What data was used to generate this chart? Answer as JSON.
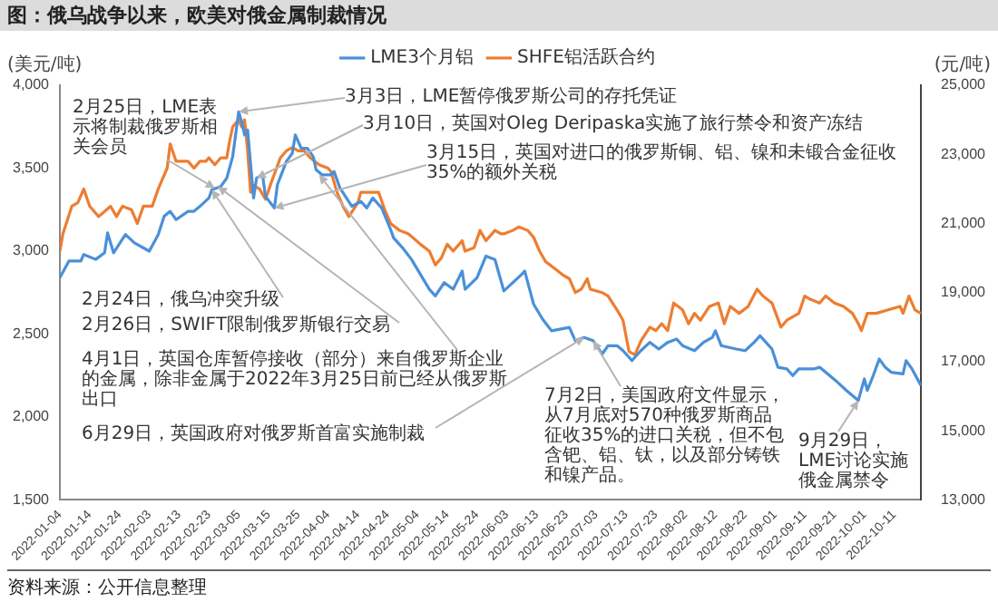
{
  "chart_data": {
    "type": "line",
    "title": "图：俄乌战争以来，欧美对俄金属制裁情况",
    "ylabel": "(美元/吨)",
    "y2label": "(元/吨)",
    "xlim": [
      "2022-01-04",
      "2022-10-20"
    ],
    "xticks": [
      "2022-01-04",
      "2022-01-14",
      "2022-01-24",
      "2022-02-03",
      "2022-02-13",
      "2022-02-23",
      "2022-03-05",
      "2022-03-15",
      "2022-03-25",
      "2022-04-04",
      "2022-04-14",
      "2022-04-24",
      "2022-05-04",
      "2022-05-14",
      "2022-05-24",
      "2022-06-03",
      "2022-06-13",
      "2022-06-23",
      "2022-07-03",
      "2022-07-13",
      "2022-07-23",
      "2022-08-02",
      "2022-08-12",
      "2022-08-22",
      "2022-09-01",
      "2022-09-11",
      "2022-09-21",
      "2022-10-01",
      "2022-10-11"
    ],
    "ylim": [
      1500,
      4000
    ],
    "yticks": [
      {
        "value": 1500,
        "label": "1,500"
      },
      {
        "value": 2000,
        "label": "2,000"
      },
      {
        "value": 2500,
        "label": "2,500"
      },
      {
        "value": 3000,
        "label": "3,000"
      },
      {
        "value": 3500,
        "label": "3,500"
      },
      {
        "value": 4000,
        "label": "4,000"
      }
    ],
    "y2lim": [
      13000,
      25000
    ],
    "y2ticks": [
      {
        "value": 13000,
        "label": "13,000"
      },
      {
        "value": 15000,
        "label": "15,000"
      },
      {
        "value": 17000,
        "label": "17,000"
      },
      {
        "value": 19000,
        "label": "19,000"
      },
      {
        "value": 21000,
        "label": "21,000"
      },
      {
        "value": 23000,
        "label": "23,000"
      },
      {
        "value": 25000,
        "label": "25,000"
      }
    ],
    "legend": "top",
    "grid": false,
    "marker": "none",
    "line_style": "solid",
    "series": [
      {
        "name": "LME3个月铝",
        "color": "#4a90d9",
        "x": [
          "2022-01-04",
          "2022-01-07",
          "2022-01-11",
          "2022-01-12",
          "2022-01-16",
          "2022-01-19",
          "2022-01-20",
          "2022-01-22",
          "2022-01-26",
          "2022-01-29",
          "2022-02-03",
          "2022-02-06",
          "2022-02-08",
          "2022-02-10",
          "2022-02-12",
          "2022-02-16",
          "2022-02-18",
          "2022-02-20",
          "2022-02-23",
          "2022-02-24",
          "2022-02-27",
          "2022-03-01",
          "2022-03-03",
          "2022-03-05",
          "2022-03-06",
          "2022-03-07",
          "2022-03-08",
          "2022-03-10",
          "2022-03-11",
          "2022-03-13",
          "2022-03-14",
          "2022-03-17",
          "2022-03-18",
          "2022-03-21",
          "2022-03-23",
          "2022-03-24",
          "2022-03-26",
          "2022-03-28",
          "2022-03-30",
          "2022-03-31",
          "2022-04-02",
          "2022-04-05",
          "2022-04-06",
          "2022-04-08",
          "2022-04-12",
          "2022-04-15",
          "2022-04-17",
          "2022-04-19",
          "2022-04-22",
          "2022-04-25",
          "2022-04-26",
          "2022-04-29",
          "2022-05-02",
          "2022-05-05",
          "2022-05-08",
          "2022-05-10",
          "2022-05-13",
          "2022-05-16",
          "2022-05-19",
          "2022-05-20",
          "2022-05-24",
          "2022-05-27",
          "2022-05-30",
          "2022-06-02",
          "2022-06-08",
          "2022-06-09",
          "2022-06-12",
          "2022-06-15",
          "2022-06-18",
          "2022-06-24",
          "2022-06-26",
          "2022-06-29",
          "2022-07-02",
          "2022-07-05",
          "2022-07-07",
          "2022-07-10",
          "2022-07-12",
          "2022-07-15",
          "2022-07-18",
          "2022-07-21",
          "2022-07-24",
          "2022-07-27",
          "2022-07-30",
          "2022-08-01",
          "2022-08-05",
          "2022-08-08",
          "2022-08-11",
          "2022-08-12",
          "2022-08-14",
          "2022-08-19",
          "2022-08-22",
          "2022-08-25",
          "2022-08-27",
          "2022-08-31",
          "2022-09-02",
          "2022-09-05",
          "2022-09-07",
          "2022-09-09",
          "2022-09-14",
          "2022-09-16",
          "2022-09-18",
          "2022-09-22",
          "2022-09-25",
          "2022-09-29",
          "2022-10-01",
          "2022-10-02",
          "2022-10-04",
          "2022-10-06",
          "2022-10-08",
          "2022-10-10",
          "2022-10-14",
          "2022-10-15",
          "2022-10-17",
          "2022-10-20"
        ],
        "values": [
          2840,
          2940,
          2940,
          2980,
          2950,
          2990,
          3110,
          2990,
          3100,
          3050,
          3000,
          3100,
          3210,
          3240,
          3190,
          3240,
          3240,
          3270,
          3320,
          3370,
          3390,
          3440,
          3570,
          3840,
          3780,
          3700,
          3730,
          3320,
          3440,
          3460,
          3330,
          3260,
          3400,
          3540,
          3590,
          3700,
          3620,
          3620,
          3570,
          3490,
          3460,
          3460,
          3480,
          3380,
          3270,
          3300,
          3260,
          3320,
          3260,
          3130,
          3080,
          3020,
          2950,
          2860,
          2770,
          2730,
          2810,
          2770,
          2880,
          2770,
          2840,
          2970,
          2950,
          2760,
          2860,
          2880,
          2680,
          2590,
          2520,
          2540,
          2460,
          2480,
          2460,
          2380,
          2430,
          2430,
          2400,
          2340,
          2400,
          2450,
          2410,
          2450,
          2470,
          2430,
          2400,
          2450,
          2480,
          2520,
          2430,
          2410,
          2400,
          2450,
          2490,
          2410,
          2300,
          2290,
          2250,
          2290,
          2290,
          2300,
          2270,
          2210,
          2160,
          2100,
          2230,
          2160,
          2250,
          2350,
          2300,
          2270,
          2260,
          2340,
          2290,
          2190
        ]
      },
      {
        "name": "SHFE铝活跃合约",
        "color": "#ed7d31",
        "axis": "y2",
        "x": [
          "2022-01-04",
          "2022-01-05",
          "2022-01-08",
          "2022-01-10",
          "2022-01-12",
          "2022-01-14",
          "2022-01-17",
          "2022-01-21",
          "2022-01-23",
          "2022-01-25",
          "2022-01-28",
          "2022-01-30",
          "2022-02-01",
          "2022-02-04",
          "2022-02-06",
          "2022-02-08",
          "2022-02-09",
          "2022-02-10",
          "2022-02-12",
          "2022-02-16",
          "2022-02-18",
          "2022-02-20",
          "2022-02-22",
          "2022-02-23",
          "2022-02-25",
          "2022-02-27",
          "2022-03-01",
          "2022-03-02",
          "2022-03-03",
          "2022-03-05",
          "2022-03-06",
          "2022-03-07",
          "2022-03-08",
          "2022-03-09",
          "2022-03-10",
          "2022-03-12",
          "2022-03-14",
          "2022-03-16",
          "2022-03-19",
          "2022-03-21",
          "2022-03-23",
          "2022-03-25",
          "2022-03-27",
          "2022-03-29",
          "2022-04-01",
          "2022-04-04",
          "2022-04-05",
          "2022-04-07",
          "2022-04-09",
          "2022-04-11",
          "2022-04-14",
          "2022-04-15",
          "2022-04-18",
          "2022-04-21",
          "2022-04-23",
          "2022-04-25",
          "2022-04-28",
          "2022-05-01",
          "2022-05-05",
          "2022-05-08",
          "2022-05-10",
          "2022-05-12",
          "2022-05-14",
          "2022-05-16",
          "2022-05-19",
          "2022-05-20",
          "2022-05-23",
          "2022-05-25",
          "2022-05-27",
          "2022-05-30",
          "2022-06-01",
          "2022-06-02",
          "2022-06-05",
          "2022-06-07",
          "2022-06-10",
          "2022-06-12",
          "2022-06-14",
          "2022-06-16",
          "2022-06-19",
          "2022-06-22",
          "2022-06-24",
          "2022-06-26",
          "2022-06-28",
          "2022-06-30",
          "2022-07-01",
          "2022-07-05",
          "2022-07-07",
          "2022-07-10",
          "2022-07-12",
          "2022-07-14",
          "2022-07-16",
          "2022-07-18",
          "2022-07-21",
          "2022-07-23",
          "2022-07-25",
          "2022-07-27",
          "2022-07-29",
          "2022-08-01",
          "2022-08-03",
          "2022-08-05",
          "2022-08-07",
          "2022-08-10",
          "2022-08-13",
          "2022-08-15",
          "2022-08-17",
          "2022-08-20",
          "2022-08-23",
          "2022-08-26",
          "2022-08-28",
          "2022-08-31",
          "2022-09-03",
          "2022-09-05",
          "2022-09-09",
          "2022-09-11",
          "2022-09-13",
          "2022-09-16",
          "2022-09-18",
          "2022-09-21",
          "2022-09-24",
          "2022-09-27",
          "2022-09-29",
          "2022-09-30",
          "2022-10-02",
          "2022-10-05",
          "2022-10-09",
          "2022-10-13",
          "2022-10-14",
          "2022-10-16",
          "2022-10-18",
          "2022-10-20"
        ],
        "values": [
          20200,
          20700,
          21500,
          21600,
          22000,
          21500,
          21200,
          21500,
          21200,
          21500,
          21400,
          21000,
          21500,
          21500,
          22000,
          22400,
          22600,
          23300,
          22800,
          22800,
          22600,
          22800,
          22800,
          22900,
          22700,
          22900,
          22900,
          23400,
          23800,
          24000,
          23800,
          24000,
          23100,
          21900,
          22100,
          22000,
          21700,
          22200,
          22900,
          23100,
          23200,
          23100,
          23100,
          22900,
          22700,
          22600,
          22500,
          21900,
          21500,
          21200,
          21600,
          21900,
          21900,
          21900,
          21400,
          21000,
          20800,
          20700,
          20400,
          20200,
          19800,
          20000,
          20400,
          20200,
          20500,
          20200,
          20300,
          20800,
          20500,
          20800,
          20700,
          20700,
          20800,
          20900,
          20800,
          20600,
          20200,
          19900,
          19700,
          19500,
          19400,
          19000,
          19100,
          19400,
          19100,
          19000,
          18900,
          18500,
          18200,
          17300,
          17200,
          17600,
          18000,
          17900,
          18100,
          17900,
          18700,
          18500,
          18100,
          18400,
          18200,
          18600,
          18700,
          18100,
          18600,
          18400,
          18600,
          19100,
          18900,
          18700,
          18000,
          18200,
          18400,
          18900,
          18800,
          18700,
          18900,
          18700,
          18600,
          18400,
          18100,
          17900,
          18400,
          18400,
          18500,
          18600,
          18400,
          18900,
          18500,
          18400
        ]
      }
    ],
    "annotations": [
      {
        "text": "2月24日，俄乌冲突升级",
        "x": "2022-02-24",
        "y": 3370
      },
      {
        "text": "2月25日，LME表示将制裁俄罗斯相关会员",
        "x": "2022-02-25",
        "y": 3380
      },
      {
        "text": "2月26日，SWIFT限制俄罗斯银行交易",
        "x": "2022-02-26",
        "y": 3390
      },
      {
        "text": "3月3日，LME暂停俄罗斯公司的存托凭证",
        "x": "2022-03-05",
        "y": 3840
      },
      {
        "text": "3月10日，英国对Oleg Deripaska实施了旅行禁令和资产冻结",
        "x": "2022-03-11",
        "y": 3440
      },
      {
        "text": "3月15日，英国对进口的俄罗斯铜、铝、镍和未锻合金征收35%的额外关税",
        "x": "2022-03-17",
        "y": 3260
      },
      {
        "text": "4月1日，英国仓库暂停接收（部分）来自俄罗斯企业的金属，除非金属于2022年3月25日前已经从俄罗斯出口",
        "x": "2022-04-01",
        "y": 3460
      },
      {
        "text": "6月29日，英国政府对俄罗斯首富实施制裁",
        "x": "2022-06-29",
        "y": 2480
      },
      {
        "text": "7月2日，美国政府文件显示，从7月底对570种俄罗斯商品征收35%的进口关税，但不包含钯、铝、钛，以及部分铸铁和镍产品。",
        "x": "2022-07-02",
        "y": 2460
      },
      {
        "text": "9月29日，LME讨论实施俄金属禁令",
        "x": "2022-09-29",
        "y": 2100
      },
      "资料来源：公开信息整理"
    ]
  }
}
